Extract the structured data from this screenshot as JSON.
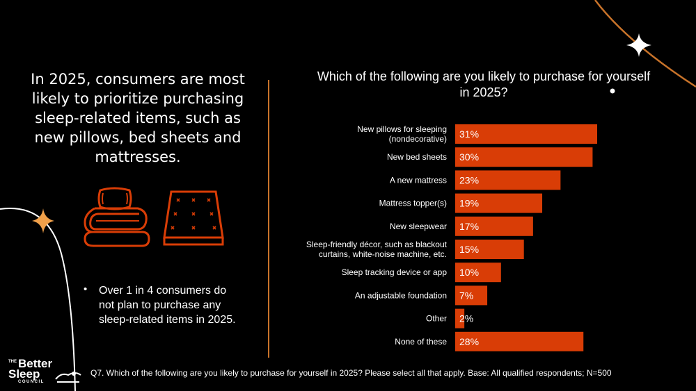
{
  "headline": "In 2025, consumers are most likely to prioritize purchasing sleep-related items, such as new pillows, bed sheets and mattresses.",
  "bullet": "Over 1 in 4 consumers do not plan to purchase any sleep-related items in 2025.",
  "icons": [
    "pillow-and-folded-sheets-icon",
    "mattress-icon"
  ],
  "footnote": "Q7. Which of the following are you likely to purchase for yourself in 2025? Please select all that apply. Base: All qualified respondents; N=500",
  "logo": {
    "the": "THE",
    "line1": "Better",
    "line2": "Sleep",
    "line3": "COUNCIL"
  },
  "colors": {
    "bar": "#d93d06",
    "accent": "#c8732a",
    "background": "#000000",
    "text": "#ffffff",
    "icon": "#d93d06"
  },
  "chart_data": {
    "type": "bar",
    "orientation": "horizontal",
    "title": "Which of the following are you likely to purchase for yourself in 2025?",
    "categories": [
      [
        "New pillows for sleeping",
        "(nondecorative)"
      ],
      [
        "New bed sheets"
      ],
      [
        "A new mattress"
      ],
      [
        "Mattress topper(s)"
      ],
      [
        "New sleepwear"
      ],
      [
        "Sleep-friendly décor, such as blackout",
        "curtains, white-noise machine, etc."
      ],
      [
        "Sleep tracking device or app"
      ],
      [
        "An adjustable foundation"
      ],
      [
        "Other"
      ],
      [
        "None of these"
      ]
    ],
    "values": [
      31,
      30,
      23,
      19,
      17,
      15,
      10,
      7,
      2,
      28
    ],
    "value_labels": [
      "31%",
      "30%",
      "23%",
      "19%",
      "17%",
      "15%",
      "10%",
      "7%",
      "2%",
      "28%"
    ],
    "unit": "%",
    "xlim": [
      0,
      31
    ],
    "grid": false,
    "legend": "none"
  }
}
